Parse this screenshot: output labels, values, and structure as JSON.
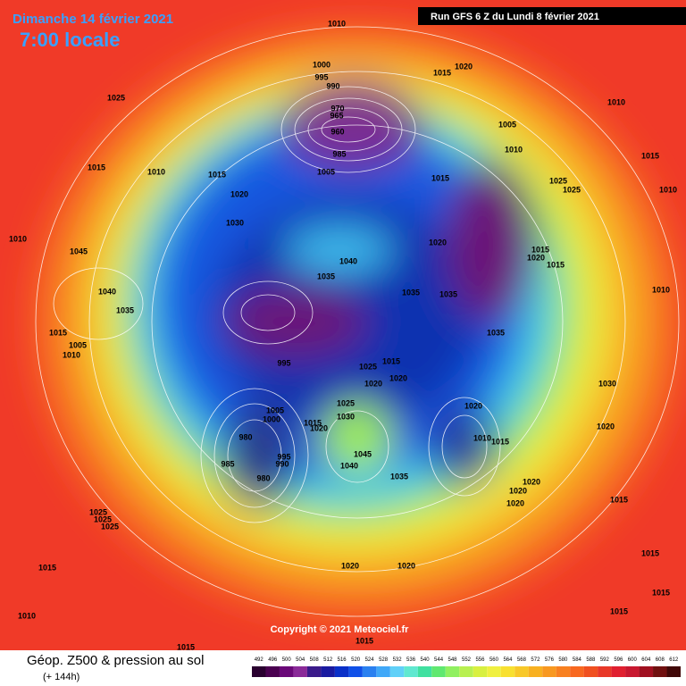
{
  "header": {
    "date": "Dimanche 14 février 2021",
    "time": "7:00 locale",
    "run": "Run GFS 6 Z du Lundi 8 février 2021"
  },
  "copyright": "Copyright © 2021 Meteociel.fr",
  "footer": {
    "title": "Géop. Z500 & pression au sol",
    "subtitle": "(+ 144h)"
  },
  "colorbar": {
    "values": [
      492,
      496,
      500,
      504,
      508,
      512,
      516,
      520,
      524,
      528,
      532,
      536,
      540,
      544,
      548,
      552,
      556,
      560,
      564,
      568,
      572,
      576,
      580,
      584,
      588,
      592,
      596,
      600,
      604,
      608,
      612
    ],
    "colors": [
      "#2a0030",
      "#4a0050",
      "#6a0878",
      "#8a2a98",
      "#3a1a8a",
      "#1a1aa0",
      "#0a30c8",
      "#1050e8",
      "#2a80f0",
      "#40a8f8",
      "#60d0f8",
      "#60e8d0",
      "#40e0a0",
      "#60e870",
      "#90f060",
      "#b8f050",
      "#d8f040",
      "#f0f040",
      "#f8e030",
      "#f8c828",
      "#f8b020",
      "#f89820",
      "#f88020",
      "#f86820",
      "#f05020",
      "#e83828",
      "#e02030",
      "#c81830",
      "#a01020",
      "#701010",
      "#400808"
    ]
  },
  "isobars": [
    "1010",
    "1015",
    "1020",
    "1010",
    "1025",
    "1000",
    "995",
    "990",
    "970",
    "965",
    "960",
    "985",
    "1005",
    "1015",
    "1005",
    "1010",
    "1015",
    "1025",
    "1025",
    "1015",
    "1010",
    "1015",
    "1020",
    "1030",
    "1010",
    "1045",
    "1040",
    "1035",
    "1040",
    "1035",
    "1020",
    "1015",
    "1020",
    "1015",
    "1035",
    "1035",
    "1010",
    "1035",
    "1015",
    "1005",
    "1010",
    "995",
    "1025",
    "1015",
    "1020",
    "1020",
    "1030",
    "1025",
    "1030",
    "1005",
    "1000",
    "1015",
    "1020",
    "1020",
    "1010",
    "1015",
    "980",
    "995",
    "990",
    "985",
    "1045",
    "1040",
    "980",
    "1035",
    "1020",
    "1020",
    "1020",
    "1020",
    "1015",
    "1025",
    "1025",
    "1025",
    "1015",
    "1020",
    "1020",
    "1015",
    "1015",
    "1010",
    "1015",
    "1015",
    "1015",
    "1010"
  ]
}
